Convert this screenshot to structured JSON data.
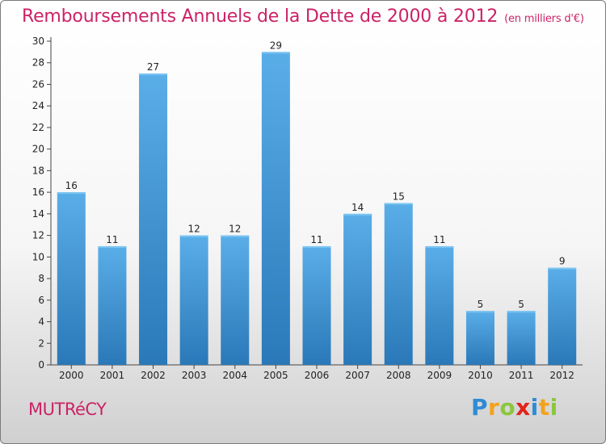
{
  "header": {
    "title": "Remboursements Annuels de la Dette de 2000 à 2012",
    "unit": "(en milliers d'€)"
  },
  "footer": {
    "commune": "MUTRéCY",
    "logo_text": "Proxiti"
  },
  "colors": {
    "title": "#cc2266",
    "bar_light": "#5aaee8",
    "bar_dark": "#2a78b8"
  },
  "chart_data": {
    "type": "bar",
    "title": "Remboursements Annuels de la Dette de 2000 à 2012",
    "subtitle": "(en milliers d'€)",
    "categories": [
      "2000",
      "2001",
      "2002",
      "2003",
      "2004",
      "2005",
      "2006",
      "2007",
      "2008",
      "2009",
      "2010",
      "2011",
      "2012"
    ],
    "values": [
      16,
      11,
      27,
      12,
      12,
      29,
      11,
      14,
      15,
      11,
      5,
      5,
      9
    ],
    "ylim": [
      0,
      30
    ],
    "yticks": [
      0,
      2,
      4,
      6,
      8,
      10,
      12,
      14,
      16,
      18,
      20,
      22,
      24,
      26,
      28,
      30
    ],
    "grid": false,
    "data_labels": true
  }
}
